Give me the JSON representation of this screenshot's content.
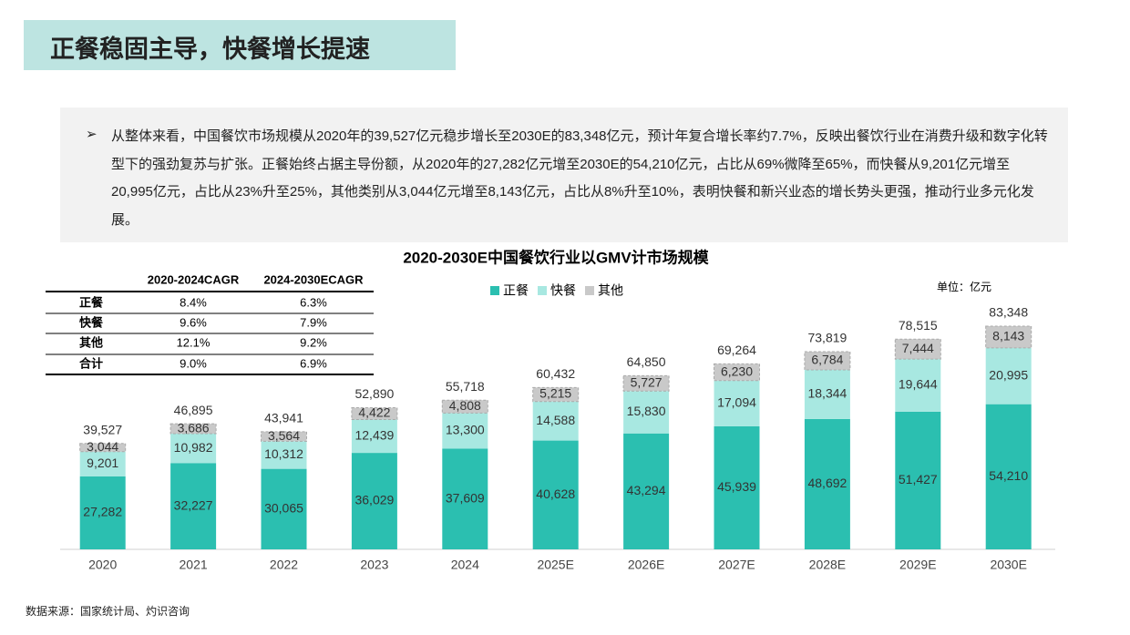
{
  "header": {
    "title": "正餐稳固主导，快餐增长提速"
  },
  "summary": "从整体来看，中国餐饮市场规模从2020年的39,527亿元稳步增长至2030E的83,348亿元，预计年复合增长率约7.7%，反映出餐饮行业在消费升级和数字化转型下的强劲复苏与扩张。正餐始终占据主导份额，从2020年的27,282亿元增至2030E的54,210亿元，占比从69%微降至65%，而快餐从9,201亿元增至20,995亿元，占比从23%升至25%，其他类别从3,044亿元增至8,143亿元，占比从8%升至10%，表明快餐和新兴业态的增长势头更强，推动行业多元化发展。",
  "table": {
    "columns": [
      "2020-2024CAGR",
      "2024-2030ECAGR"
    ],
    "rows": [
      [
        "正餐",
        "8.4%",
        "6.3%"
      ],
      [
        "快餐",
        "9.6%",
        "7.9%"
      ],
      [
        "其他",
        "12.1%",
        "9.2%"
      ],
      [
        "合计",
        "9.0%",
        "6.9%"
      ]
    ]
  },
  "chart_data": {
    "type": "stacked_bar",
    "title": "2020-2030E中国餐饮行业以GMV计市场规模",
    "unit": "单位：亿元",
    "categories": [
      "2020",
      "2021",
      "2022",
      "2023",
      "2024",
      "2025E",
      "2026E",
      "2027E",
      "2028E",
      "2029E",
      "2030E"
    ],
    "series": [
      {
        "name": "正餐",
        "color": "#2bbfb0",
        "values": [
          27282,
          32227,
          30065,
          36029,
          37609,
          40628,
          43294,
          45939,
          48692,
          51427,
          54210
        ],
        "value_labels": [
          "27,282",
          "32,227",
          "30,065",
          "36,029",
          "37,609",
          "40,628",
          "43,294",
          "45,939",
          "48,692",
          "51,427",
          "54,210"
        ]
      },
      {
        "name": "快餐",
        "color": "#a8e8e1",
        "values": [
          9201,
          10982,
          10312,
          12439,
          13300,
          14588,
          15830,
          17094,
          18344,
          19644,
          20995
        ],
        "value_labels": [
          "9,201",
          "10,982",
          "10,312",
          "12,439",
          "13,300",
          "14,588",
          "15,830",
          "17,094",
          "18,344",
          "19,644",
          "20,995"
        ]
      },
      {
        "name": "其他",
        "color": "#c9c9c9",
        "values": [
          3044,
          3686,
          3564,
          4422,
          4808,
          5215,
          5727,
          6230,
          6784,
          7444,
          8143
        ],
        "value_labels": [
          "3,044",
          "3,686",
          "3,564",
          "4,422",
          "4,808",
          "5,215",
          "5,727",
          "6,230",
          "6,784",
          "7,444",
          "8,143"
        ]
      }
    ],
    "totals": [
      39527,
      46895,
      43941,
      52890,
      55718,
      60432,
      64850,
      69264,
      73819,
      78515,
      83348
    ],
    "total_labels": [
      "39,527",
      "46,895",
      "43,941",
      "52,890",
      "55,718",
      "60,432",
      "64,850",
      "69,264",
      "73,819",
      "78,515",
      "83,348"
    ]
  },
  "source": "数据来源：国家统计局、灼识咨询"
}
